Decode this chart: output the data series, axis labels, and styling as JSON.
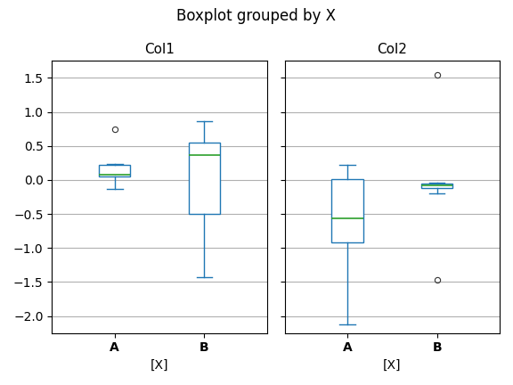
{
  "title": "Boxplot grouped by X",
  "col1_label": "Col1",
  "col2_label": "Col2",
  "xlabel": "[X]",
  "groups": [
    "A",
    "B"
  ],
  "col1": {
    "A": {
      "med": 0.08,
      "q1": 0.05,
      "q3": 0.22,
      "whislo": -0.13,
      "whishi": 0.23,
      "fliers": [
        0.75
      ]
    },
    "B": {
      "med": 0.36,
      "q1": -0.5,
      "q3": 0.55,
      "whislo": -1.43,
      "whishi": 0.87,
      "fliers": []
    }
  },
  "col2": {
    "A": {
      "med": -0.57,
      "q1": -0.92,
      "q3": 0.01,
      "whislo": -2.12,
      "whishi": 0.22,
      "fliers": []
    },
    "B": {
      "med": -0.085,
      "q1": -0.115,
      "q3": -0.055,
      "whislo": -0.2,
      "whishi": -0.045,
      "fliers": [
        1.55,
        -1.47
      ]
    }
  },
  "box_color": "#1f77b4",
  "median_color": "#2ca02c",
  "background_color": "white",
  "grid_color": "#b0b0b0",
  "ylim": [
    -2.25,
    1.75
  ],
  "box_width": 0.35,
  "figsize": [
    5.76,
    4.32
  ],
  "dpi": 100
}
